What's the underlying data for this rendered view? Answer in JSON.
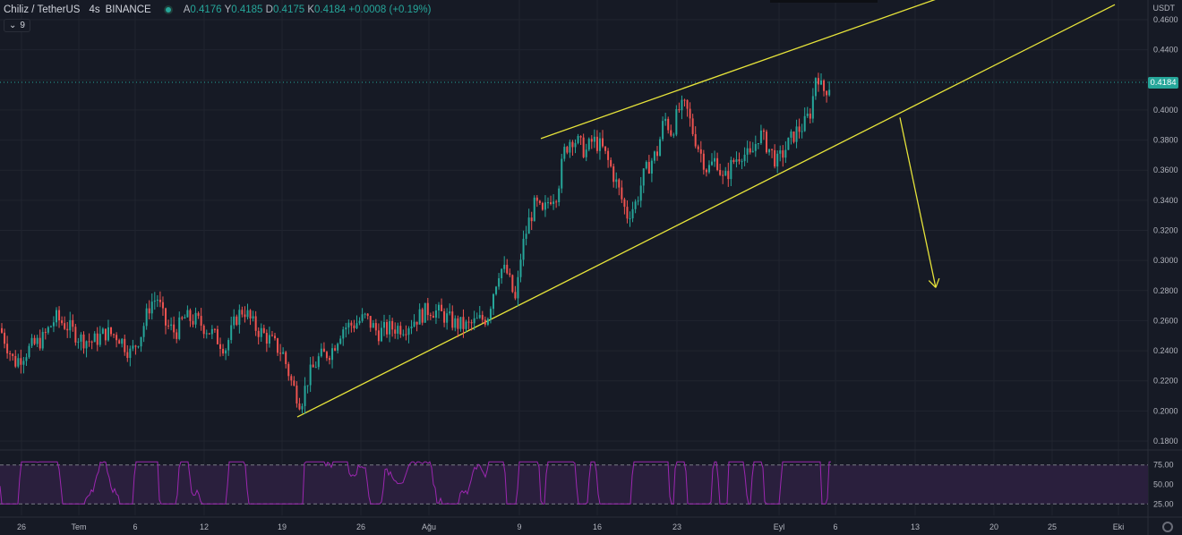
{
  "legend": {
    "symbol": "Chiliz / TetherUS",
    "timeframe": "4s",
    "exchange": "BINANCE",
    "open_label": "A",
    "open": "0.4176",
    "high_label": "Y",
    "high": "0.4185",
    "low_label": "D",
    "low": "0.4175",
    "close_label": "K",
    "close": "0.4184",
    "change": "+0.0008 (+0.19%)"
  },
  "indicator_pill": {
    "collapse_glyph": "⌄",
    "count": "9"
  },
  "price_axis": {
    "unit": "USDT",
    "current_price": "0.4184",
    "ticks": [
      "0.4600",
      "0.4400",
      "0.4200",
      "0.4000",
      "0.3800",
      "0.3600",
      "0.3400",
      "0.3200",
      "0.3000",
      "0.2800",
      "0.2600",
      "0.2400",
      "0.2200",
      "0.2000",
      "0.1800"
    ]
  },
  "rsi_axis": {
    "ticks": [
      "75.00",
      "50.00",
      "25.00"
    ]
  },
  "time_axis": {
    "labels": [
      "26",
      "Tem",
      "6",
      "12",
      "19",
      "26",
      "Ağu",
      "9",
      "16",
      "23",
      "Eyl",
      "6",
      "13",
      "20",
      "25",
      "Eki"
    ]
  },
  "colors": {
    "background": "#161a25",
    "up_candle": "#26a69a",
    "down_candle": "#ef5350",
    "trendline": "#e6e33a",
    "rsi_line": "#9c27b0",
    "rsi_band": "#2a1f3d",
    "grid": "#20242f"
  },
  "chart_data": [
    {
      "type": "candlestick",
      "name": "Chiliz / TetherUS",
      "ylim": [
        0.18,
        0.46
      ],
      "y_axis_side": "right",
      "x_time_labels": [
        "26",
        "Tem",
        "6",
        "12",
        "19",
        "26",
        "Ağu",
        "9",
        "16",
        "23",
        "Eyl",
        "6",
        "13",
        "20",
        "25",
        "Eki"
      ],
      "close_path": [
        [
          0,
          0.255
        ],
        [
          16,
          0.232
        ],
        [
          34,
          0.242
        ],
        [
          48,
          0.248
        ],
        [
          62,
          0.262
        ],
        [
          76,
          0.256
        ],
        [
          90,
          0.248
        ],
        [
          104,
          0.246
        ],
        [
          118,
          0.252
        ],
        [
          132,
          0.25
        ],
        [
          146,
          0.238
        ],
        [
          158,
          0.252
        ],
        [
          168,
          0.272
        ],
        [
          176,
          0.275
        ],
        [
          184,
          0.258
        ],
        [
          196,
          0.252
        ],
        [
          206,
          0.262
        ],
        [
          220,
          0.26
        ],
        [
          236,
          0.252
        ],
        [
          252,
          0.242
        ],
        [
          264,
          0.262
        ],
        [
          272,
          0.268
        ],
        [
          284,
          0.256
        ],
        [
          300,
          0.248
        ],
        [
          316,
          0.238
        ],
        [
          326,
          0.218
        ],
        [
          336,
          0.205
        ],
        [
          344,
          0.222
        ],
        [
          356,
          0.235
        ],
        [
          370,
          0.24
        ],
        [
          382,
          0.255
        ],
        [
          396,
          0.258
        ],
        [
          408,
          0.262
        ],
        [
          422,
          0.252
        ],
        [
          436,
          0.255
        ],
        [
          452,
          0.256
        ],
        [
          466,
          0.262
        ],
        [
          480,
          0.268
        ],
        [
          494,
          0.264
        ],
        [
          508,
          0.258
        ],
        [
          522,
          0.256
        ],
        [
          534,
          0.26
        ],
        [
          544,
          0.262
        ],
        [
          552,
          0.282
        ],
        [
          558,
          0.295
        ],
        [
          566,
          0.292
        ],
        [
          576,
          0.272
        ],
        [
          582,
          0.305
        ],
        [
          590,
          0.325
        ],
        [
          598,
          0.338
        ],
        [
          606,
          0.33
        ],
        [
          614,
          0.342
        ],
        [
          622,
          0.345
        ],
        [
          630,
          0.372
        ],
        [
          638,
          0.382
        ],
        [
          646,
          0.378
        ],
        [
          654,
          0.372
        ],
        [
          662,
          0.38
        ],
        [
          672,
          0.375
        ],
        [
          682,
          0.362
        ],
        [
          692,
          0.345
        ],
        [
          700,
          0.33
        ],
        [
          710,
          0.338
        ],
        [
          718,
          0.355
        ],
        [
          726,
          0.365
        ],
        [
          734,
          0.372
        ],
        [
          742,
          0.395
        ],
        [
          750,
          0.385
        ],
        [
          758,
          0.4
        ],
        [
          766,
          0.402
        ],
        [
          774,
          0.385
        ],
        [
          782,
          0.372
        ],
        [
          790,
          0.36
        ],
        [
          800,
          0.368
        ],
        [
          808,
          0.352
        ],
        [
          818,
          0.365
        ],
        [
          828,
          0.372
        ],
        [
          838,
          0.368
        ],
        [
          848,
          0.385
        ],
        [
          858,
          0.375
        ],
        [
          868,
          0.365
        ],
        [
          878,
          0.375
        ],
        [
          888,
          0.385
        ],
        [
          898,
          0.39
        ],
        [
          906,
          0.4
        ],
        [
          912,
          0.428
        ],
        [
          918,
          0.412
        ],
        [
          924,
          0.415
        ],
        [
          929,
          0.4184
        ]
      ],
      "trendlines": [
        {
          "name": "upper-resistance",
          "points": [
            [
              604,
              0.381
            ],
            [
              1052,
              0.475
            ]
          ]
        },
        {
          "name": "lower-support",
          "points": [
            [
              332,
              0.196
            ],
            [
              1245,
              0.47
            ]
          ]
        }
      ],
      "projection_arrow": {
        "from": [
          1005,
          0.395
        ],
        "to": [
          1045,
          0.282
        ]
      },
      "current_price_line": 0.4184
    },
    {
      "type": "line",
      "name": "RSI",
      "ylim": [
        15,
        85
      ],
      "bands": [
        75,
        25
      ],
      "ticks": [
        75,
        50,
        25
      ]
    }
  ]
}
